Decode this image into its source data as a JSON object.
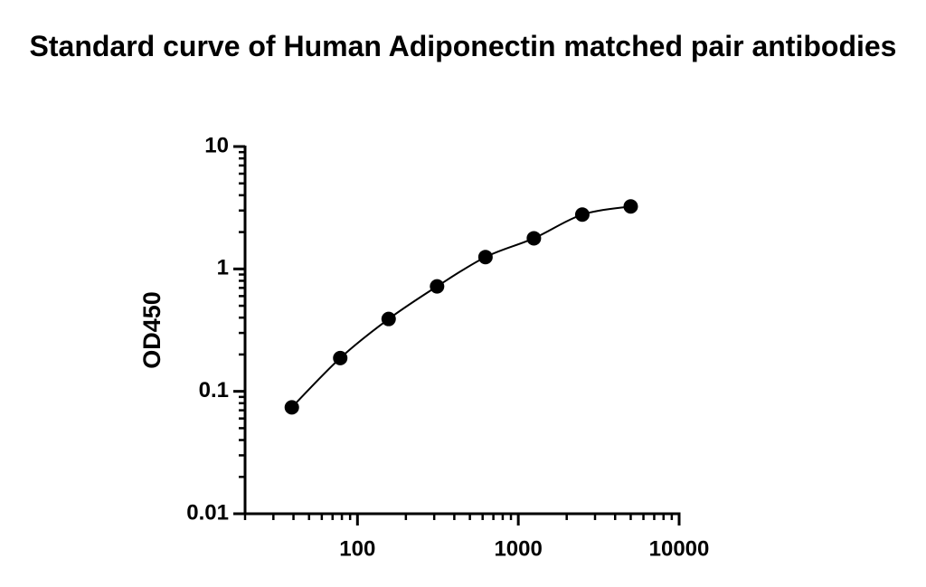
{
  "chart_data": {
    "type": "scatter",
    "title": "Standard curve of Human Adiponectin matched pair antibodies",
    "y_label": "OD450",
    "x_scale": "log",
    "y_scale": "log",
    "series": [
      {
        "color": "#000000",
        "x": [
          39.0625,
          78.125,
          156.25,
          312.5,
          625,
          1250,
          2500,
          5000
        ],
        "values": [
          0.074,
          0.187,
          0.39,
          0.72,
          1.25,
          1.78,
          2.78,
          3.24
        ]
      }
    ],
    "xlim": [
      20,
      10000
    ],
    "xticks": [
      100,
      1000,
      10000
    ],
    "ylim": [
      0.01,
      10
    ],
    "yticks": [
      0.01,
      0.1,
      1,
      10
    ],
    "fit_curve": true
  }
}
